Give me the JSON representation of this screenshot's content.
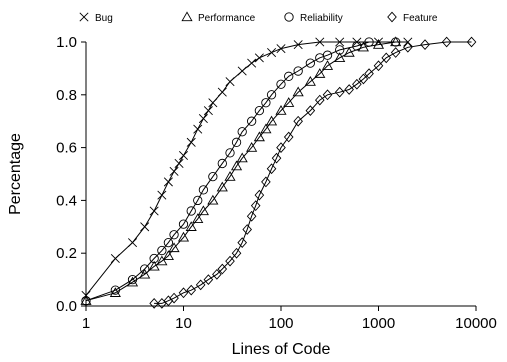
{
  "chart_data": {
    "type": "line",
    "x_scale": "log",
    "xlim": [
      1,
      10000
    ],
    "ylim": [
      0,
      1
    ],
    "xlabel": "Lines of Code",
    "ylabel": "Percentage",
    "x_ticks": [
      "1",
      "10",
      "100",
      "1000",
      "10000"
    ],
    "y_ticks": [
      "0.0",
      "0.2",
      "0.4",
      "0.6",
      "0.8",
      "1.0"
    ],
    "legend_position": "top",
    "series": [
      {
        "name": "Bug",
        "marker": "x",
        "points": [
          [
            1,
            0.04
          ],
          [
            2,
            0.18
          ],
          [
            3,
            0.24
          ],
          [
            4,
            0.3
          ],
          [
            5,
            0.36
          ],
          [
            6,
            0.42
          ],
          [
            7,
            0.47
          ],
          [
            8,
            0.51
          ],
          [
            9,
            0.54
          ],
          [
            10,
            0.57
          ],
          [
            12,
            0.62
          ],
          [
            14,
            0.67
          ],
          [
            16,
            0.71
          ],
          [
            18,
            0.74
          ],
          [
            20,
            0.77
          ],
          [
            25,
            0.81
          ],
          [
            30,
            0.85
          ],
          [
            40,
            0.89
          ],
          [
            50,
            0.92
          ],
          [
            60,
            0.94
          ],
          [
            80,
            0.96
          ],
          [
            100,
            0.975
          ],
          [
            150,
            0.99
          ],
          [
            250,
            1.0
          ],
          [
            400,
            1.0
          ],
          [
            600,
            1.0
          ],
          [
            1000,
            1.0
          ],
          [
            2000,
            1.0
          ]
        ]
      },
      {
        "name": "Performance",
        "marker": "triangle",
        "points": [
          [
            1,
            0.02
          ],
          [
            2,
            0.05
          ],
          [
            3,
            0.09
          ],
          [
            4,
            0.12
          ],
          [
            5,
            0.15
          ],
          [
            6,
            0.17
          ],
          [
            7,
            0.19
          ],
          [
            8,
            0.22
          ],
          [
            10,
            0.26
          ],
          [
            12,
            0.3
          ],
          [
            14,
            0.33
          ],
          [
            16,
            0.36
          ],
          [
            20,
            0.4
          ],
          [
            25,
            0.45
          ],
          [
            30,
            0.49
          ],
          [
            35,
            0.53
          ],
          [
            40,
            0.56
          ],
          [
            50,
            0.6
          ],
          [
            60,
            0.64
          ],
          [
            70,
            0.67
          ],
          [
            80,
            0.7
          ],
          [
            100,
            0.74
          ],
          [
            120,
            0.77
          ],
          [
            150,
            0.81
          ],
          [
            200,
            0.85
          ],
          [
            250,
            0.88
          ],
          [
            300,
            0.91
          ],
          [
            400,
            0.94
          ],
          [
            500,
            0.96
          ],
          [
            700,
            0.98
          ],
          [
            1000,
            0.99
          ],
          [
            1500,
            1.0
          ]
        ]
      },
      {
        "name": "Reliability",
        "marker": "circle",
        "points": [
          [
            1,
            0.02
          ],
          [
            2,
            0.06
          ],
          [
            3,
            0.1
          ],
          [
            4,
            0.14
          ],
          [
            5,
            0.18
          ],
          [
            6,
            0.21
          ],
          [
            7,
            0.24
          ],
          [
            8,
            0.27
          ],
          [
            10,
            0.31
          ],
          [
            12,
            0.36
          ],
          [
            14,
            0.4
          ],
          [
            16,
            0.44
          ],
          [
            20,
            0.49
          ],
          [
            25,
            0.54
          ],
          [
            30,
            0.58
          ],
          [
            35,
            0.62
          ],
          [
            40,
            0.66
          ],
          [
            50,
            0.7
          ],
          [
            60,
            0.74
          ],
          [
            70,
            0.77
          ],
          [
            80,
            0.8
          ],
          [
            100,
            0.84
          ],
          [
            120,
            0.87
          ],
          [
            150,
            0.89
          ],
          [
            200,
            0.92
          ],
          [
            250,
            0.94
          ],
          [
            300,
            0.95
          ],
          [
            400,
            0.97
          ],
          [
            600,
            0.985
          ],
          [
            800,
            1.0
          ],
          [
            1500,
            1.0
          ]
        ]
      },
      {
        "name": "Feature",
        "marker": "diamond",
        "points": [
          [
            5,
            0.01
          ],
          [
            6,
            0.01
          ],
          [
            7,
            0.02
          ],
          [
            8,
            0.03
          ],
          [
            10,
            0.05
          ],
          [
            12,
            0.06
          ],
          [
            15,
            0.08
          ],
          [
            18,
            0.1
          ],
          [
            22,
            0.12
          ],
          [
            25,
            0.14
          ],
          [
            30,
            0.17
          ],
          [
            35,
            0.2
          ],
          [
            40,
            0.24
          ],
          [
            45,
            0.29
          ],
          [
            50,
            0.34
          ],
          [
            55,
            0.38
          ],
          [
            60,
            0.42
          ],
          [
            70,
            0.47
          ],
          [
            80,
            0.52
          ],
          [
            90,
            0.56
          ],
          [
            100,
            0.6
          ],
          [
            120,
            0.64
          ],
          [
            150,
            0.7
          ],
          [
            200,
            0.74
          ],
          [
            250,
            0.78
          ],
          [
            300,
            0.8
          ],
          [
            400,
            0.81
          ],
          [
            500,
            0.82
          ],
          [
            600,
            0.84
          ],
          [
            700,
            0.86
          ],
          [
            800,
            0.88
          ],
          [
            1000,
            0.91
          ],
          [
            1200,
            0.94
          ],
          [
            1500,
            0.96
          ],
          [
            2000,
            0.98
          ],
          [
            3000,
            0.99
          ],
          [
            5000,
            1.0
          ],
          [
            9000,
            1.0
          ]
        ]
      }
    ]
  }
}
